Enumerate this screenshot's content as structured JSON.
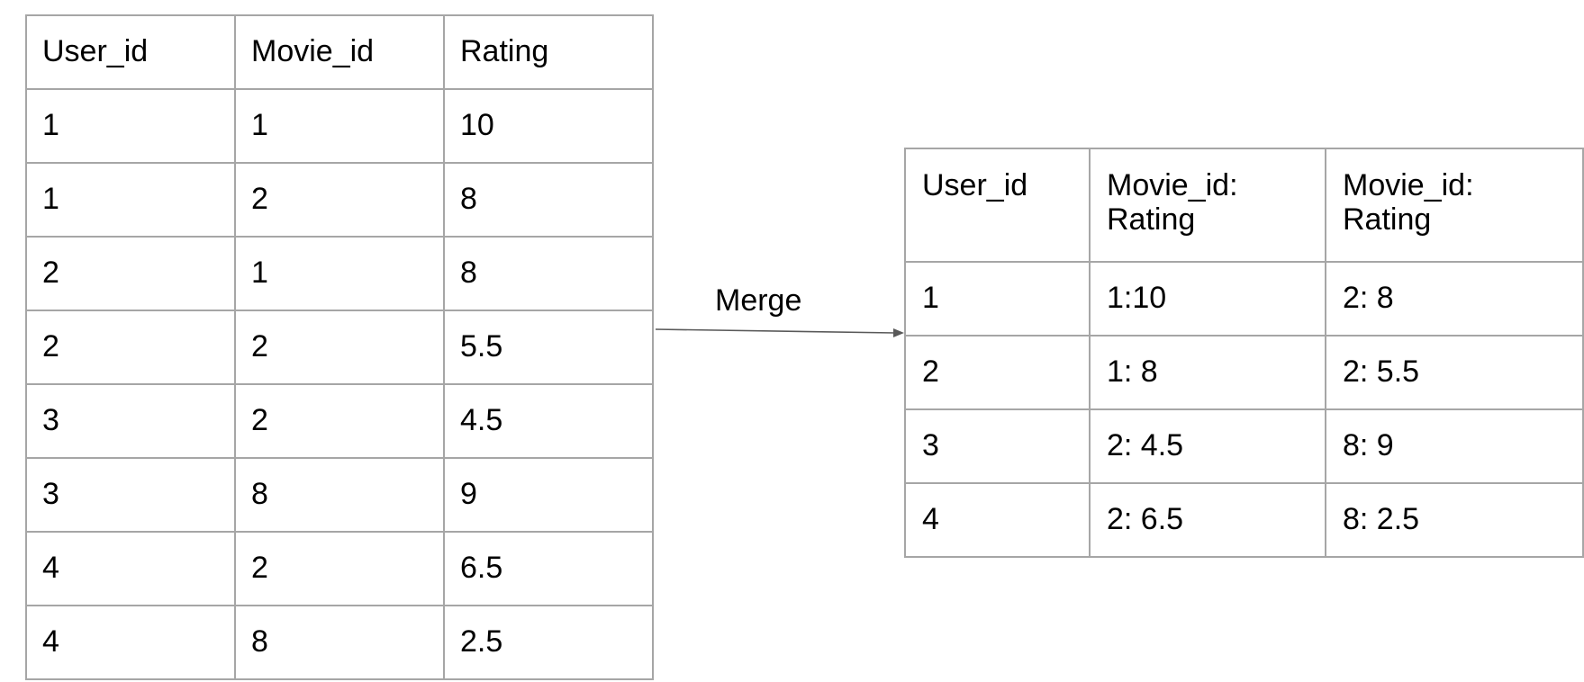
{
  "source_table": {
    "headers": [
      "User_id",
      "Movie_id",
      "Rating"
    ],
    "rows": [
      [
        "1",
        "1",
        "10"
      ],
      [
        "1",
        "2",
        "8"
      ],
      [
        "2",
        "1",
        "8"
      ],
      [
        "2",
        "2",
        "5.5"
      ],
      [
        "3",
        "2",
        "4.5"
      ],
      [
        "3",
        "8",
        "9"
      ],
      [
        "4",
        "2",
        "6.5"
      ],
      [
        "4",
        "8",
        "2.5"
      ]
    ]
  },
  "arrow": {
    "label": "Merge"
  },
  "merged_table": {
    "headers": [
      "User_id",
      "Movie_id:\nRating",
      "Movie_id:\nRating"
    ],
    "rows": [
      [
        "1",
        "1:10",
        "2: 8"
      ],
      [
        "2",
        "1: 8",
        "2: 5.5"
      ],
      [
        "3",
        "2: 4.5",
        "8: 9"
      ],
      [
        "4",
        "2: 6.5",
        "8: 2.5"
      ]
    ]
  },
  "colors": {
    "border": "#a6a6a6",
    "arrow": "#595959",
    "text": "#000000"
  }
}
